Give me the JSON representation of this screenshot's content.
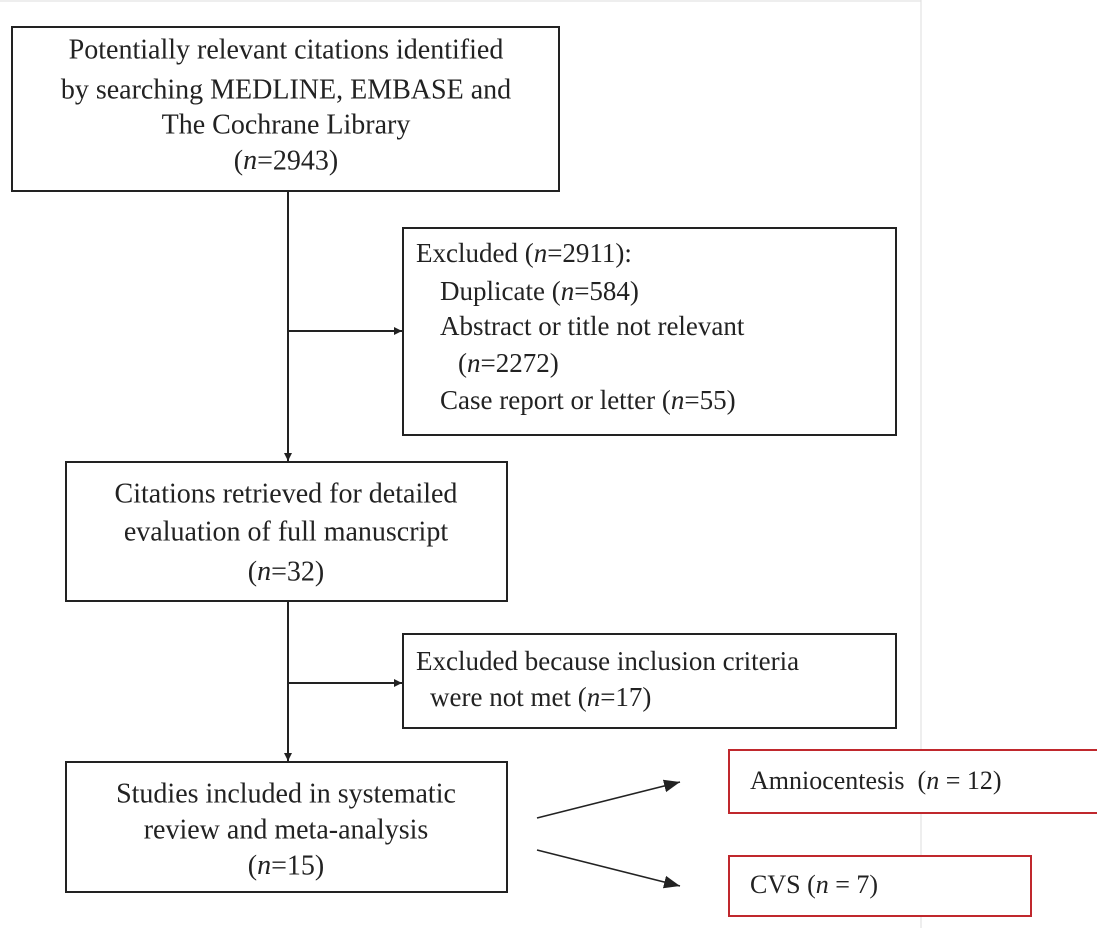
{
  "nodes": [
    {
      "lines": [
        "Potentially relevant citations identified",
        "by searching MEDLINE, EMBASE and",
        "The Cochrane Library",
        "(n=2943)"
      ]
    },
    {
      "lines": [
        "Excluded (n=2911):",
        "Duplicate (n=584)",
        "Abstract or title not relevant",
        "(n=2272)",
        "Case report or letter (n=55)"
      ]
    },
    {
      "lines": [
        "Citations retrieved for detailed",
        "evaluation of full manuscript",
        "(n=32)"
      ]
    },
    {
      "lines": [
        "Excluded because inclusion criteria",
        "were not met (n=17)"
      ]
    },
    {
      "lines": [
        "Studies included in systematic",
        "review and meta-analysis",
        "(n=15)"
      ]
    },
    {
      "lines": [
        "Amniocentesis  (n = 12)"
      ]
    },
    {
      "lines": [
        "CVS (n = 7)"
      ]
    }
  ]
}
